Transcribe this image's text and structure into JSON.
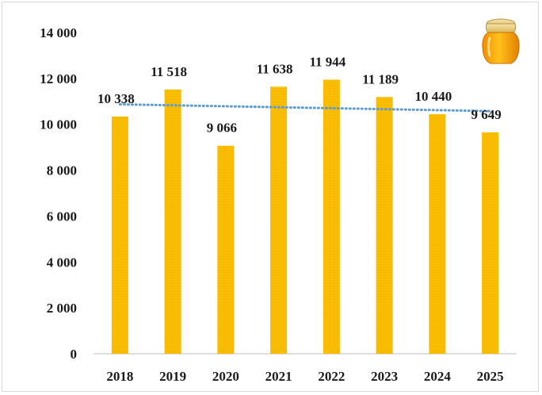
{
  "chart_data": {
    "type": "bar",
    "title": "",
    "xlabel": "",
    "ylabel": "",
    "categories": [
      "2018",
      "2019",
      "2020",
      "2021",
      "2022",
      "2023",
      "2024",
      "2025"
    ],
    "values": [
      10338,
      11518,
      9066,
      11638,
      11944,
      11189,
      10440,
      9649
    ],
    "value_labels": [
      "10 338",
      "11 518",
      "9 066",
      "11 638",
      "11 944",
      "11 189",
      "10 440",
      "9 649"
    ],
    "ylim": [
      0,
      14000
    ],
    "yticks": [
      0,
      2000,
      4000,
      6000,
      8000,
      10000,
      12000,
      14000
    ],
    "ytick_labels": [
      "0",
      "2 000",
      "4 000",
      "6 000",
      "8 000",
      "10 000",
      "12 000",
      "14 000"
    ],
    "trendline": {
      "type": "linear",
      "style": "dotted",
      "color": "#5b9bd5"
    },
    "grid": false,
    "legend": "none",
    "bar_color": "#ffc000",
    "decoration": "honey-jar-icon"
  }
}
